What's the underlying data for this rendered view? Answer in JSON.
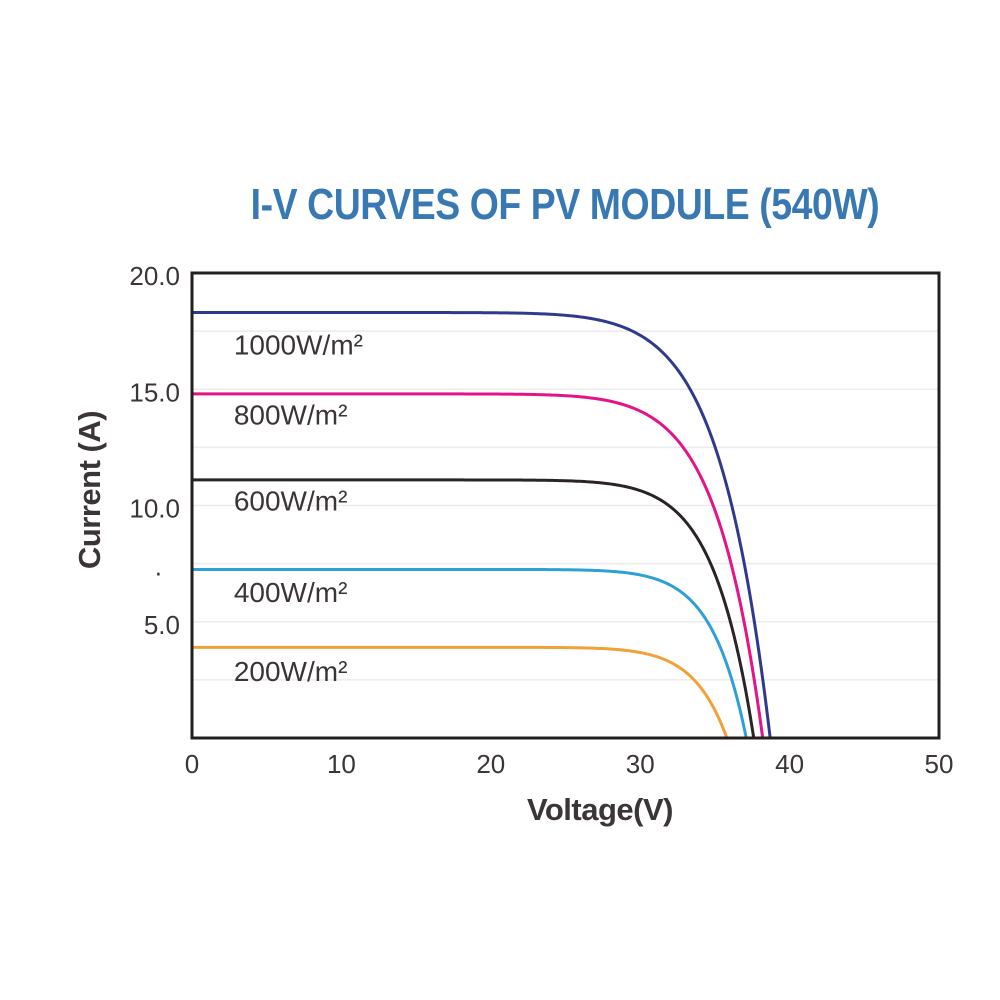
{
  "title": {
    "text": "I-V CURVES OF PV MODULE (540W)",
    "color": "#3879b3"
  },
  "chart_data": {
    "type": "line",
    "title": "I-V CURVES OF PV MODULE (540W)",
    "xlabel": "Voltage(V)",
    "ylabel": "Current (A)",
    "xlim": [
      0,
      50
    ],
    "ylim": [
      0,
      20
    ],
    "grid": "horizontal-only",
    "legend_position": "inline-labels",
    "x_ticks": [
      {
        "value": 0,
        "label": "0"
      },
      {
        "value": 10,
        "label": "10"
      },
      {
        "value": 20,
        "label": "20"
      },
      {
        "value": 30,
        "label": "30"
      },
      {
        "value": 40,
        "label": "40"
      },
      {
        "value": 50,
        "label": "50"
      }
    ],
    "y_ticks": [
      {
        "value": 20,
        "label": "20.0"
      },
      {
        "value": 15,
        "label": "15.0"
      },
      {
        "value": 10,
        "label": "10.0"
      },
      {
        "value": 7.5,
        "label": ".",
        "x_offset": -18
      },
      {
        "value": 5,
        "label": "5.0"
      }
    ],
    "y_gridlines": [
      2.5,
      5,
      7.5,
      10,
      12.5,
      15,
      17.5
    ],
    "colors": {
      "axis": "#231f20",
      "grid": "#ececec",
      "text": "#3b3536",
      "title": "#3879b3"
    },
    "series": [
      {
        "label": "1000W/m²",
        "color": "#2f3a8f",
        "isc_a": 18.3,
        "voc_v": 38.7,
        "knee_exponent": 11.5,
        "label_x_v": 2.8,
        "label_y_a": 16.9
      },
      {
        "label": "800W/m²",
        "color": "#e41388",
        "isc_a": 14.8,
        "voc_v": 38.2,
        "knee_exponent": 12.4,
        "label_x_v": 2.8,
        "label_y_a": 13.9
      },
      {
        "label": "600W/m²",
        "color": "#2a2425",
        "isc_a": 11.1,
        "voc_v": 37.6,
        "knee_exponent": 14.1,
        "label_x_v": 2.8,
        "label_y_a": 10.2
      },
      {
        "label": "400W/m²",
        "color": "#2e9fd9",
        "isc_a": 7.25,
        "voc_v": 37.1,
        "knee_exponent": 16.1,
        "label_x_v": 2.8,
        "label_y_a": 6.25
      },
      {
        "label": "200W/m²",
        "color": "#f0a239",
        "isc_a": 3.9,
        "voc_v": 35.8,
        "knee_exponent": 16.2,
        "label_x_v": 2.8,
        "label_y_a": 2.85
      }
    ]
  }
}
